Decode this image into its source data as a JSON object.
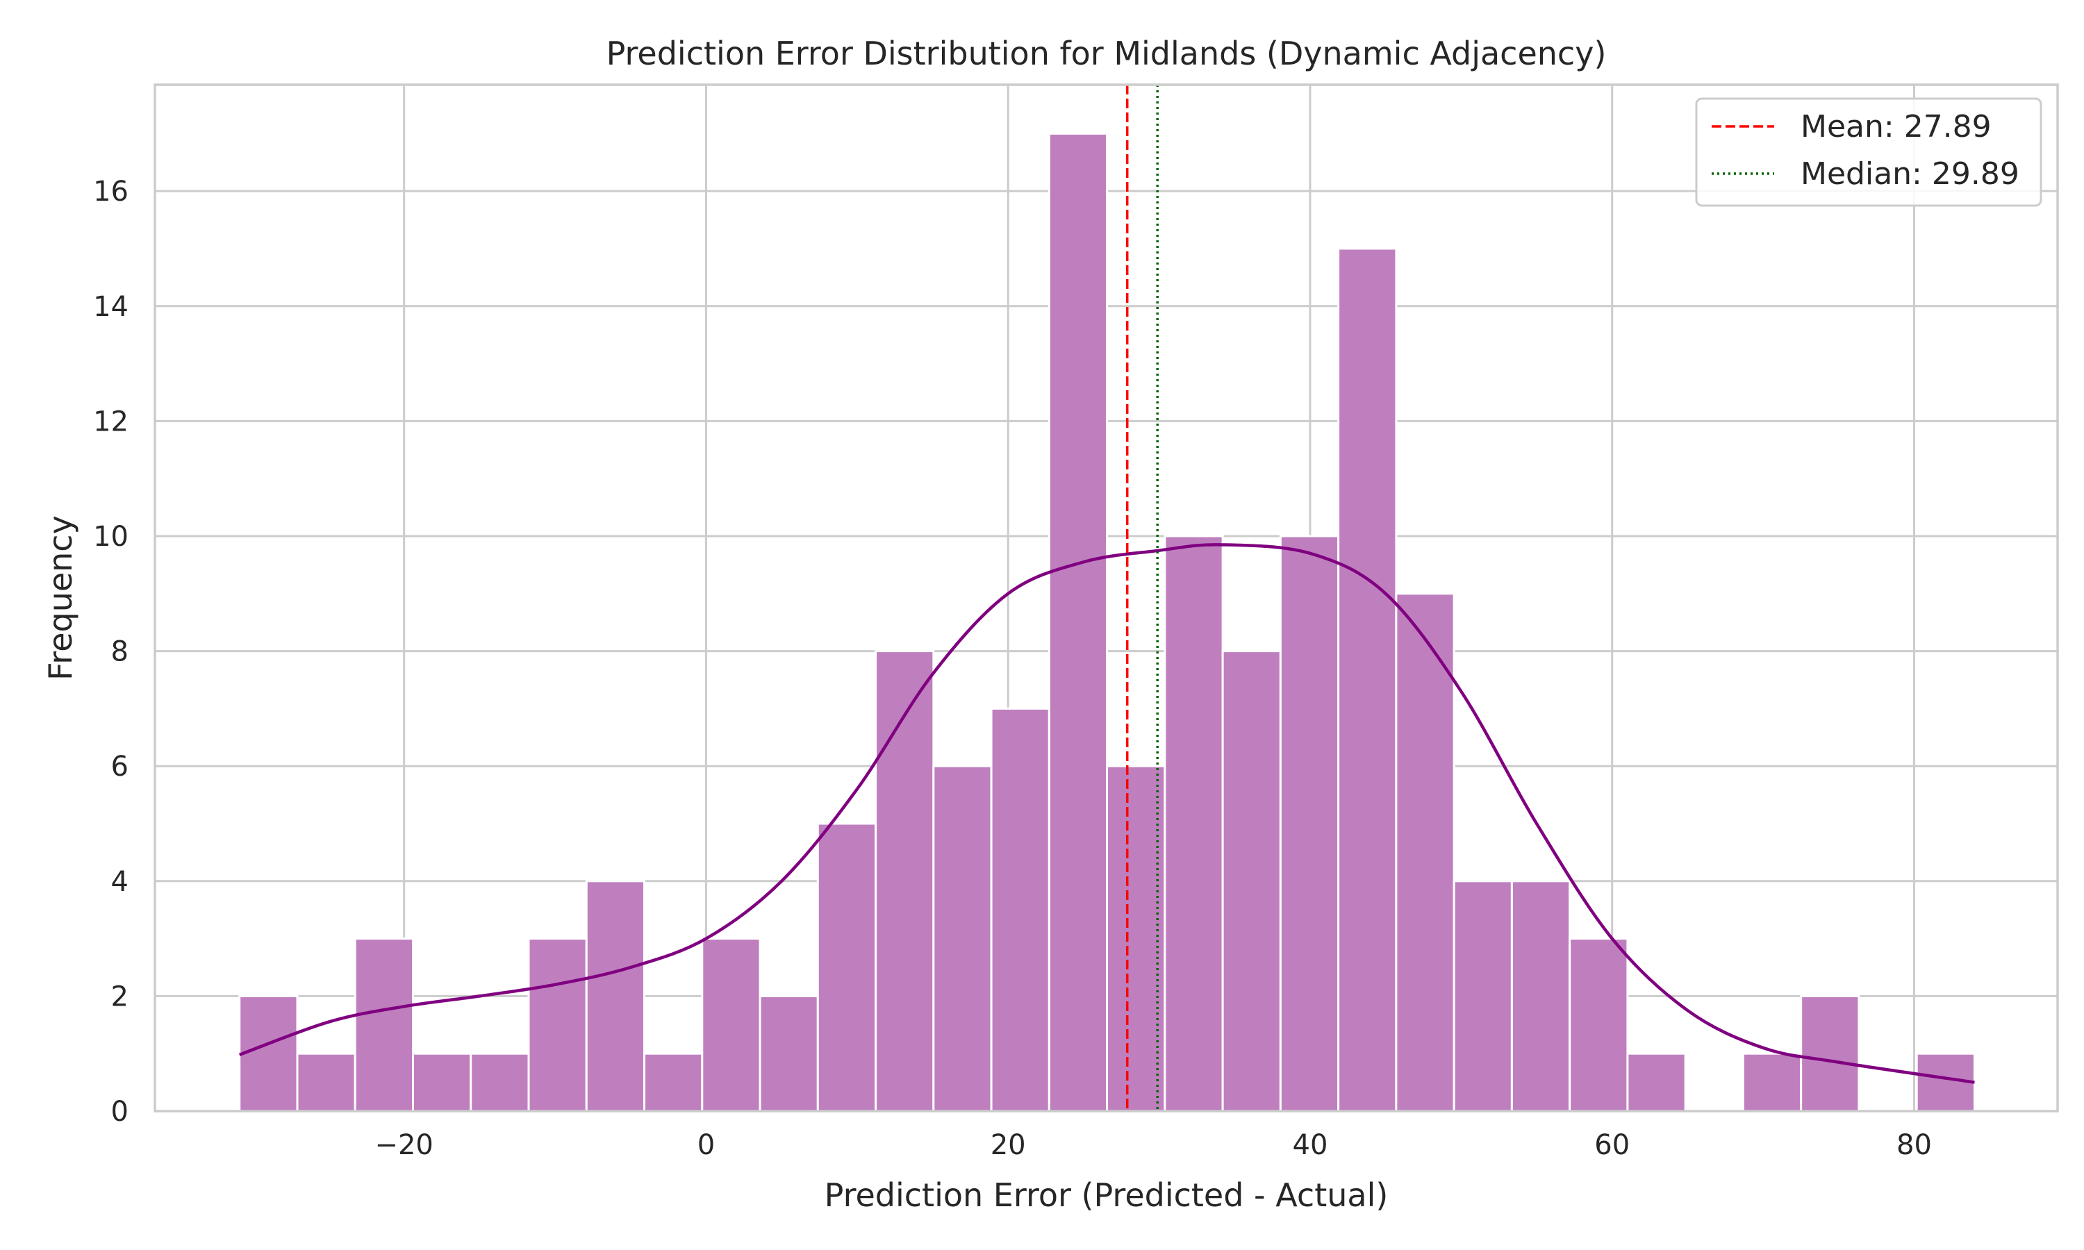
{
  "chart_data": {
    "type": "bar",
    "title": "Prediction Error Distribution for Midlands (Dynamic Adjacency)",
    "xlabel": "Prediction Error (Predicted - Actual)",
    "ylabel": "Frequency",
    "xlim": [
      -36.5,
      89.5
    ],
    "ylim": [
      0,
      17.85
    ],
    "xticks": [
      -20,
      0,
      20,
      40,
      60,
      80
    ],
    "xtick_labels": [
      "−20",
      "0",
      "20",
      "40",
      "60",
      "80"
    ],
    "yticks": [
      0,
      2,
      4,
      6,
      8,
      10,
      12,
      14,
      16
    ],
    "ytick_labels": [
      "0",
      "2",
      "4",
      "6",
      "8",
      "10",
      "12",
      "14",
      "16"
    ],
    "grid": true,
    "legend_position": "top-right",
    "bar_color": "#bf7fbf",
    "bin_edges": [
      -30.9,
      -27.07,
      -23.24,
      -19.41,
      -15.58,
      -11.75,
      -7.92,
      -4.09,
      -0.26,
      3.57,
      7.4,
      11.23,
      15.06,
      18.89,
      22.72,
      26.55,
      30.38,
      34.21,
      38.04,
      41.87,
      45.7,
      49.53,
      53.36,
      57.19,
      61.02,
      64.85,
      68.68,
      72.51,
      76.34,
      80.17,
      84.0
    ],
    "counts": [
      2,
      1,
      3,
      1,
      1,
      3,
      4,
      1,
      3,
      2,
      5,
      8,
      6,
      7,
      17,
      6,
      10,
      8,
      10,
      15,
      9,
      4,
      4,
      3,
      1,
      0,
      1,
      2,
      0,
      1
    ],
    "kde": {
      "color": "#800080",
      "x": [
        -30.9,
        -25,
        -20,
        -15,
        -10,
        -5,
        0,
        5,
        10,
        15,
        20,
        25,
        30,
        34,
        40,
        45,
        50,
        55,
        60,
        65,
        70,
        75,
        84
      ],
      "y": [
        0.98,
        1.55,
        1.82,
        2.0,
        2.2,
        2.5,
        3.0,
        4.0,
        5.6,
        7.6,
        9.0,
        9.55,
        9.75,
        9.85,
        9.7,
        9.0,
        7.3,
        5.0,
        3.0,
        1.75,
        1.1,
        0.85,
        0.5
      ]
    },
    "reference_lines": [
      {
        "name": "Mean: 27.89",
        "value": 27.89,
        "color": "#ff0000",
        "style": "dashed"
      },
      {
        "name": "Median: 29.89",
        "value": 29.89,
        "color": "#006400",
        "style": "dotted"
      }
    ]
  }
}
